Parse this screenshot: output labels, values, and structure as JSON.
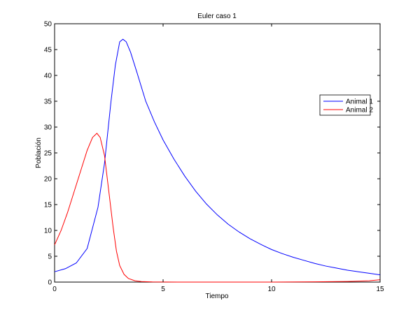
{
  "chart_data": {
    "type": "line",
    "title": "Euler caso 1",
    "xlabel": "Tiempo",
    "ylabel": "Población",
    "xlim": [
      0,
      15
    ],
    "ylim": [
      0,
      50
    ],
    "xticks": [
      0,
      5,
      10,
      15
    ],
    "yticks": [
      0,
      5,
      10,
      15,
      20,
      25,
      30,
      35,
      40,
      45,
      50
    ],
    "grid": false,
    "legend_position": "right",
    "series": [
      {
        "name": "Animal 1",
        "color": "#0000ff",
        "x": [
          0,
          0.5,
          1.0,
          1.5,
          2.0,
          2.3,
          2.6,
          2.8,
          3.0,
          3.15,
          3.3,
          3.5,
          3.8,
          4.2,
          4.6,
          5.0,
          5.5,
          6.0,
          6.5,
          7.0,
          7.5,
          8.0,
          8.5,
          9.0,
          9.5,
          10.0,
          10.5,
          11.0,
          11.5,
          12.0,
          12.5,
          13.0,
          13.5,
          14.0,
          14.5,
          15.0
        ],
        "y": [
          2.0,
          2.6,
          3.7,
          6.5,
          14.5,
          23.0,
          35.0,
          42.0,
          46.5,
          47.0,
          46.5,
          44.5,
          40.5,
          35.0,
          31.0,
          27.5,
          23.8,
          20.5,
          17.6,
          15.1,
          13.0,
          11.2,
          9.7,
          8.4,
          7.3,
          6.3,
          5.5,
          4.8,
          4.2,
          3.6,
          3.1,
          2.7,
          2.3,
          2.0,
          1.7,
          1.4
        ]
      },
      {
        "name": "Animal 2",
        "color": "#ff0000",
        "x": [
          0,
          0.3,
          0.6,
          0.9,
          1.2,
          1.5,
          1.75,
          1.95,
          2.1,
          2.3,
          2.5,
          2.7,
          2.85,
          3.0,
          3.2,
          3.4,
          3.7,
          4.0,
          4.5,
          5.0,
          6.0,
          8.0,
          10.0,
          12.0,
          13.5,
          14.5,
          15.0
        ],
        "y": [
          7.2,
          10.0,
          13.5,
          17.5,
          21.5,
          25.5,
          28.0,
          28.8,
          28.0,
          24.5,
          17.5,
          10.5,
          6.0,
          3.2,
          1.5,
          0.7,
          0.25,
          0.1,
          0.03,
          0.01,
          0.0,
          0.0,
          0.0,
          0.05,
          0.12,
          0.25,
          0.45
        ]
      }
    ]
  }
}
